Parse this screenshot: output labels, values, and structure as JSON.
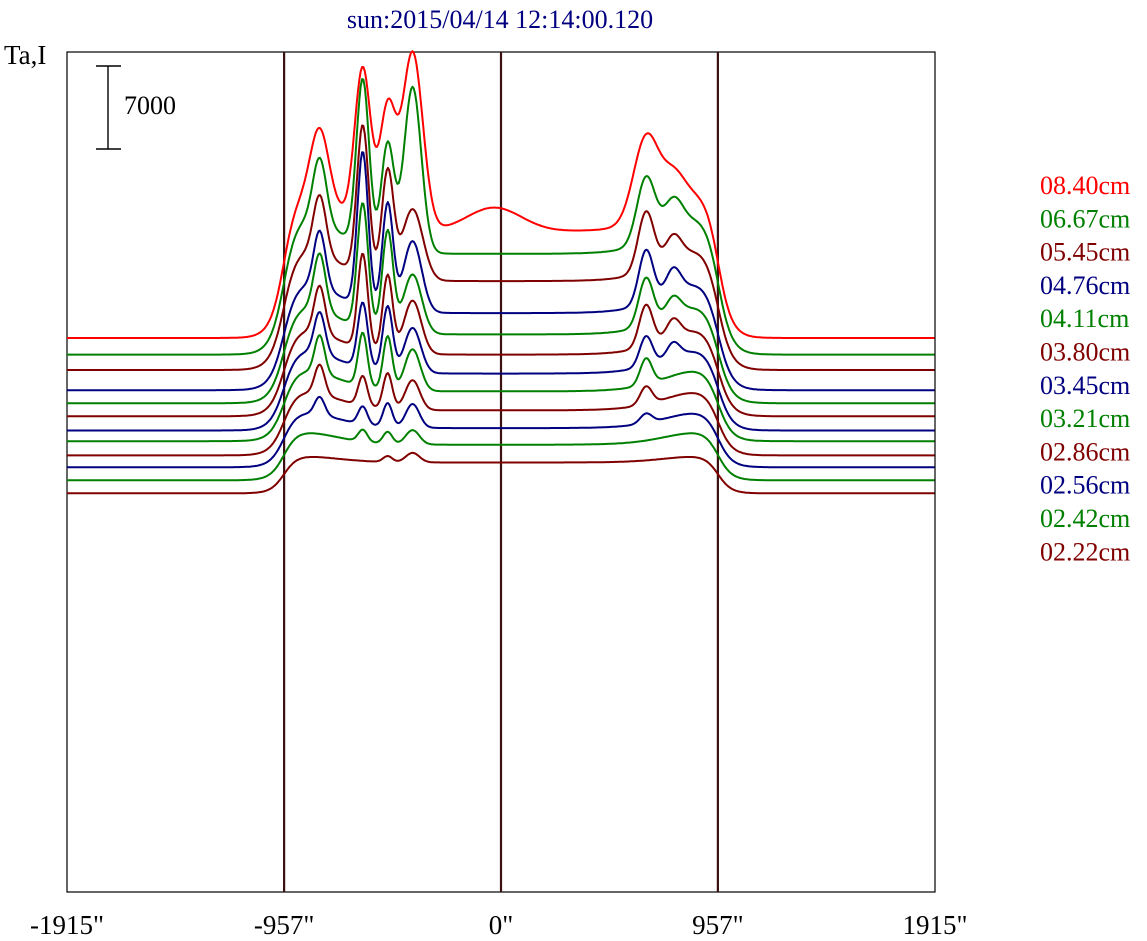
{
  "chart_data": {
    "type": "line",
    "title": "sun:2015/04/14 12:14:00.120",
    "ylabel": "Ta,I",
    "scale_bar_label": "7000",
    "scale_bar_value": 7000,
    "x_ticks": [
      {
        "value": -1915,
        "label": "-1915\""
      },
      {
        "value": -957,
        "label": "-957\""
      },
      {
        "value": 0,
        "label": "0\""
      },
      {
        "value": 957,
        "label": "957\""
      },
      {
        "value": 1915,
        "label": "1915\""
      }
    ],
    "vertical_markers": [
      -957,
      0,
      957
    ],
    "xlim": [
      -1915,
      1915
    ],
    "stacked_offset": true,
    "legend": [
      {
        "label": "08.40cm",
        "color": "#ff0000"
      },
      {
        "label": "06.67cm",
        "color": "#008000"
      },
      {
        "label": "05.45cm",
        "color": "#800000"
      },
      {
        "label": "04.76cm",
        "color": "#000080"
      },
      {
        "label": "04.11cm",
        "color": "#008000"
      },
      {
        "label": "03.80cm",
        "color": "#800000"
      },
      {
        "label": "03.45cm",
        "color": "#000080"
      },
      {
        "label": "03.21cm",
        "color": "#008000"
      },
      {
        "label": "02.86cm",
        "color": "#800000"
      },
      {
        "label": "02.56cm",
        "color": "#000080"
      },
      {
        "label": "02.42cm",
        "color": "#008000"
      },
      {
        "label": "02.22cm",
        "color": "#800000"
      }
    ],
    "series": [
      {
        "color": "#ff0000",
        "baseline": 0,
        "disk": 9000,
        "limb": 12000,
        "peaks": [
          [
            -800,
            6000,
            40
          ],
          [
            -610,
            13000,
            35
          ],
          [
            -500,
            10000,
            35
          ],
          [
            -390,
            15000,
            45
          ],
          [
            -30,
            2000,
            120
          ],
          [
            640,
            7000,
            55
          ],
          [
            760,
            2500,
            50
          ]
        ]
      },
      {
        "color": "#008000",
        "baseline": -1400,
        "disk": 8500,
        "limb": 11500,
        "peaks": [
          [
            -800,
            5500,
            30
          ],
          [
            -610,
            14000,
            28
          ],
          [
            -500,
            9000,
            28
          ],
          [
            -390,
            14000,
            38
          ],
          [
            640,
            5500,
            40
          ],
          [
            760,
            2500,
            40
          ]
        ]
      },
      {
        "color": "#800000",
        "baseline": -2700,
        "disk": 7500,
        "limb": 10000,
        "peaks": [
          [
            -800,
            5000,
            28
          ],
          [
            -610,
            12500,
            26
          ],
          [
            -500,
            9000,
            26
          ],
          [
            -390,
            6000,
            45
          ],
          [
            640,
            5000,
            35
          ],
          [
            760,
            2000,
            35
          ]
        ]
      },
      {
        "color": "#000080",
        "baseline": -4400,
        "disk": 6500,
        "limb": 9500,
        "peaks": [
          [
            -800,
            4800,
            26
          ],
          [
            -610,
            13000,
            24
          ],
          [
            -500,
            9000,
            24
          ],
          [
            -390,
            6000,
            40
          ],
          [
            640,
            4500,
            32
          ],
          [
            760,
            2000,
            32
          ]
        ]
      },
      {
        "color": "#008000",
        "baseline": -5500,
        "disk": 5800,
        "limb": 9000,
        "peaks": [
          [
            -800,
            4800,
            26
          ],
          [
            -610,
            10500,
            24
          ],
          [
            -500,
            8500,
            24
          ],
          [
            -390,
            5000,
            40
          ],
          [
            640,
            4000,
            32
          ],
          [
            760,
            1500,
            32
          ]
        ]
      },
      {
        "color": "#800000",
        "baseline": -6600,
        "disk": 5200,
        "limb": 8000,
        "peaks": [
          [
            -800,
            4000,
            24
          ],
          [
            -610,
            8000,
            22
          ],
          [
            -500,
            6500,
            22
          ],
          [
            -390,
            4500,
            38
          ],
          [
            640,
            3500,
            30
          ],
          [
            760,
            1500,
            30
          ]
        ]
      },
      {
        "color": "#000080",
        "baseline": -7800,
        "disk": 4800,
        "limb": 7500,
        "peaks": [
          [
            -800,
            3500,
            24
          ],
          [
            -610,
            5500,
            22
          ],
          [
            -500,
            5500,
            22
          ],
          [
            -390,
            3800,
            36
          ],
          [
            640,
            2500,
            28
          ],
          [
            760,
            1200,
            28
          ]
        ]
      },
      {
        "color": "#008000",
        "baseline": -8700,
        "disk": 4200,
        "limb": 6800,
        "peaks": [
          [
            -800,
            3200,
            22
          ],
          [
            -610,
            4500,
            20
          ],
          [
            -500,
            4500,
            20
          ],
          [
            -390,
            3500,
            34
          ],
          [
            640,
            2200,
            26
          ]
        ]
      },
      {
        "color": "#800000",
        "baseline": -9900,
        "disk": 3800,
        "limb": 6000,
        "peaks": [
          [
            -800,
            2500,
            22
          ],
          [
            -610,
            2500,
            20
          ],
          [
            -500,
            3000,
            20
          ],
          [
            -390,
            2500,
            32
          ],
          [
            640,
            1500,
            26
          ]
        ]
      },
      {
        "color": "#000080",
        "baseline": -10900,
        "disk": 3300,
        "limb": 5000,
        "peaks": [
          [
            -800,
            1500,
            22
          ],
          [
            -610,
            1500,
            20
          ],
          [
            -500,
            2000,
            20
          ],
          [
            -390,
            2000,
            30
          ],
          [
            640,
            800,
            26
          ]
        ]
      },
      {
        "color": "#008000",
        "baseline": -12000,
        "disk": 3000,
        "limb": 4000,
        "peaks": [
          [
            -610,
            1000,
            20
          ],
          [
            -500,
            1000,
            20
          ],
          [
            -390,
            1200,
            30
          ]
        ]
      },
      {
        "color": "#800000",
        "baseline": -13100,
        "disk": 2600,
        "limb": 2000,
        "peaks": [
          [
            -500,
            500,
            20
          ],
          [
            -390,
            800,
            30
          ]
        ]
      }
    ]
  }
}
